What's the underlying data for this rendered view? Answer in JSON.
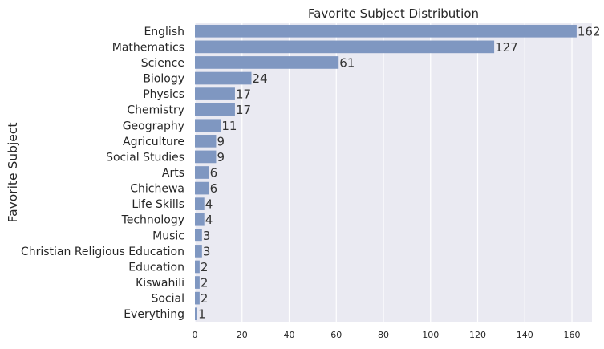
{
  "chart_data": {
    "type": "bar",
    "orientation": "horizontal",
    "title": "Favorite Subject Distribution",
    "xlabel": "",
    "ylabel": "Favorite Subject",
    "categories": [
      "English",
      "Mathematics",
      "Science",
      "Biology",
      "Physics",
      "Chemistry",
      "Geography",
      "Agriculture",
      "Social Studies",
      "Arts",
      "Chichewa",
      "Life Skills",
      "Technology",
      "Music",
      "Christian Religious Education",
      "Education",
      "Kiswahili",
      "Social",
      "Everything"
    ],
    "values": [
      162,
      127,
      61,
      24,
      17,
      17,
      11,
      9,
      9,
      6,
      6,
      4,
      4,
      3,
      3,
      2,
      2,
      2,
      1
    ],
    "xlim": [
      0,
      168.5
    ],
    "xticks": [
      0,
      20,
      40,
      60,
      80,
      100,
      120,
      140,
      160
    ],
    "grid": true,
    "legend": "none",
    "colors": {
      "bar": "#7f97c1",
      "plot_bg": "#eaeaf2",
      "grid": "#ffffff"
    }
  }
}
